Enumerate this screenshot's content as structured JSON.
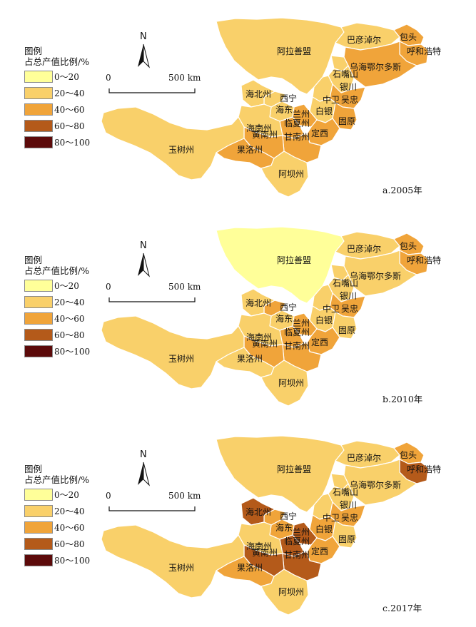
{
  "legend": {
    "title_line1": "图例",
    "title_line2": "占总产值比例/%",
    "items": [
      {
        "label": "0～20",
        "color": "#ffff99"
      },
      {
        "label": "20～40",
        "color": "#f9d06a"
      },
      {
        "label": "40～60",
        "color": "#f0a43a"
      },
      {
        "label": "60～80",
        "color": "#b45a1a"
      },
      {
        "label": "80～100",
        "color": "#5c0a0a"
      }
    ]
  },
  "north_label": "N",
  "scale": {
    "start": "0",
    "end": "500 km"
  },
  "region_names": {
    "baotou": "包头",
    "hohhot": "呼和浩特",
    "bayannur": "巴彦淖尔",
    "alxa": "阿拉善盟",
    "ordos": "乌海鄂尔多斯",
    "shizuishan": "石嘴山",
    "yinchuan": "银川",
    "zhongwei": "中卫",
    "wuzhong": "吴忠",
    "haibei": "海北州",
    "xining": "西宁",
    "haidong": "海东",
    "lanzhou": "兰州",
    "baiyin": "白银",
    "hainan": "海南州",
    "linxia": "临夏州",
    "guyuan": "固原",
    "huangnan": "黄南州",
    "gannan": "甘南州",
    "dingxi": "定西",
    "yushu": "玉树州",
    "guoluo": "果洛州",
    "aba": "阿坝州"
  },
  "panels": [
    {
      "caption": "a.2005年",
      "fills": {
        "alxa": "20～40",
        "bayannur": "20～40",
        "baotou": "40～60",
        "hohhot": "40～60",
        "ordos": "40～60",
        "shizuishan": "20～40",
        "yinchuan": "20～40",
        "zhongwei": "20～40",
        "wuzhong": "40～60",
        "guyuan": "40～60",
        "baiyin": "20～40",
        "lanzhou": "40～60",
        "dingxi": "40～60",
        "linxia": "40～60",
        "gannan": "40～60",
        "huangnan": "40～60",
        "hainan": "20～40",
        "haidong": "20～40",
        "xining": "20～40",
        "haibei": "20～40",
        "yushu": "20～40",
        "guoluo": "40～60",
        "aba": "20～40"
      }
    },
    {
      "caption": "b.2010年",
      "fills": {
        "alxa": "0～20",
        "bayannur": "20～40",
        "baotou": "40～60",
        "hohhot": "40～60",
        "ordos": "20～40",
        "shizuishan": "20～40",
        "yinchuan": "20～40",
        "zhongwei": "20～40",
        "wuzhong": "40～60",
        "guyuan": "20～40",
        "baiyin": "20～40",
        "lanzhou": "40～60",
        "dingxi": "40～60",
        "linxia": "40～60",
        "gannan": "40～60",
        "huangnan": "40～60",
        "hainan": "20～40",
        "haidong": "20～40",
        "xining": "40～60",
        "haibei": "20～40",
        "yushu": "20～40",
        "guoluo": "20～40",
        "aba": "20～40"
      }
    },
    {
      "caption": "c.2017年",
      "fills": {
        "alxa": "20～40",
        "bayannur": "20～40",
        "baotou": "40～60",
        "hohhot": "60～80",
        "ordos": "20～40",
        "shizuishan": "20～40",
        "yinchuan": "20～40",
        "zhongwei": "20～40",
        "wuzhong": "40～60",
        "guyuan": "20～40",
        "baiyin": "40～60",
        "lanzhou": "60～80",
        "dingxi": "40～60",
        "linxia": "60～80",
        "gannan": "60～80",
        "huangnan": "60～80",
        "hainan": "20～40",
        "haidong": "40～60",
        "xining": "40～60",
        "haibei": "60～80",
        "yushu": "20～40",
        "guoluo": "40～60",
        "aba": "20～40"
      }
    }
  ]
}
